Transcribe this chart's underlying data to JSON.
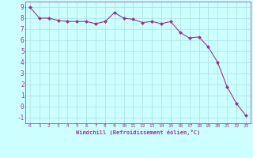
{
  "x": [
    0,
    1,
    2,
    3,
    4,
    5,
    6,
    7,
    8,
    9,
    10,
    11,
    12,
    13,
    14,
    15,
    16,
    17,
    18,
    19,
    20,
    21,
    22,
    23
  ],
  "y": [
    9.0,
    8.0,
    8.0,
    7.8,
    7.7,
    7.7,
    7.7,
    7.5,
    7.7,
    8.5,
    8.0,
    7.9,
    7.6,
    7.7,
    7.5,
    7.7,
    6.7,
    6.2,
    6.3,
    5.4,
    4.0,
    1.8,
    0.3,
    -0.8
  ],
  "line_color": "#993399",
  "marker": "D",
  "marker_size": 2,
  "bg_color": "#ccffff",
  "grid_color": "#aadddd",
  "xlabel": "Windchill (Refroidissement éolien,°C)",
  "xlabel_color": "#993399",
  "tick_color": "#993399",
  "xlim": [
    -0.5,
    23.5
  ],
  "ylim": [
    -1.5,
    9.5
  ],
  "yticks": [
    -1,
    0,
    1,
    2,
    3,
    4,
    5,
    6,
    7,
    8,
    9
  ],
  "xticks": [
    0,
    1,
    2,
    3,
    4,
    5,
    6,
    7,
    8,
    9,
    10,
    11,
    12,
    13,
    14,
    15,
    16,
    17,
    18,
    19,
    20,
    21,
    22,
    23
  ]
}
